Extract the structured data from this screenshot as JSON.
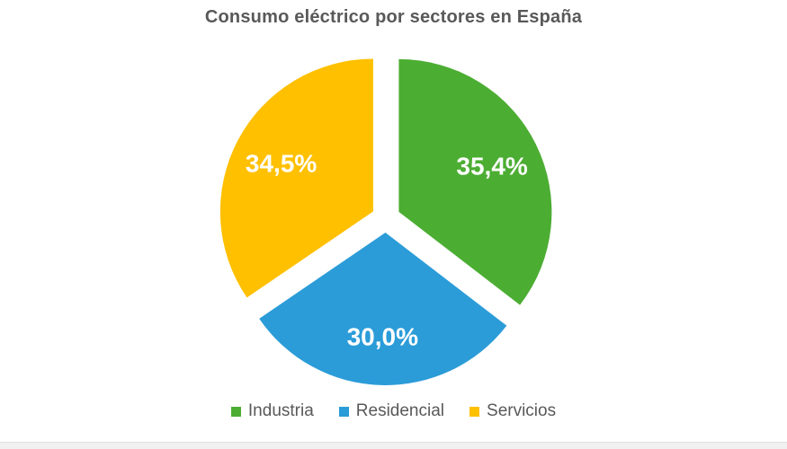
{
  "page": {
    "background_color": "#ffffff",
    "footer_bar_color": "#f1f1f1"
  },
  "chart_data": {
    "type": "pie",
    "title": "Consumo eléctrico por sectores en España",
    "title_color": "#595959",
    "label_color": "#ffffff",
    "legend_position": "bottom",
    "legend_text_color": "#595959",
    "start_angle_deg": 0,
    "exploded": true,
    "slices": [
      {
        "name": "Industria",
        "value": 35.4,
        "label": "35,4%",
        "color": "#4CAD33"
      },
      {
        "name": "Residencial",
        "value": 30.0,
        "label": "30,0%",
        "color": "#2B9CD8"
      },
      {
        "name": "Servicios",
        "value": 34.5,
        "label": "34,5%",
        "color": "#FFC000"
      }
    ]
  }
}
